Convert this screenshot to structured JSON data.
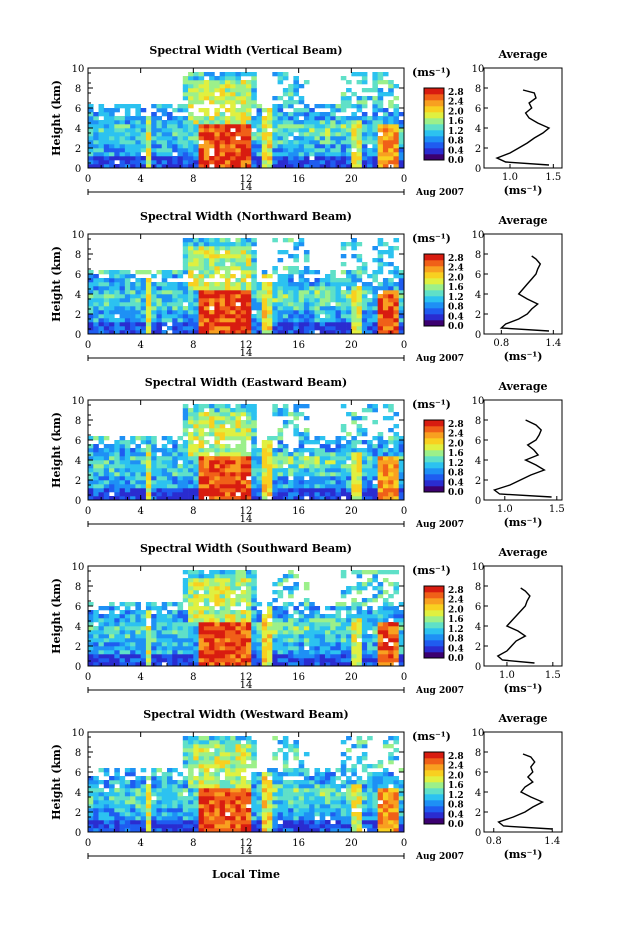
{
  "figure": {
    "xlabel": "Local Time"
  },
  "colorbar": {
    "unit_label": "(ms⁻¹)",
    "ticks": [
      "2.8",
      "2.4",
      "2.0",
      "1.6",
      "1.2",
      "0.8",
      "0.4",
      "0.0"
    ],
    "colors": [
      "#3c0070",
      "#2a2cd0",
      "#1f5cf0",
      "#1e90f5",
      "#2cc2f0",
      "#5fe0c8",
      "#9cf08a",
      "#e0f040",
      "#f8d020",
      "#f8a020",
      "#f06018",
      "#d81c10"
    ]
  },
  "date": {
    "day_label": "14",
    "month_label": "Aug 2007"
  },
  "chart_data": [
    {
      "type": "heatmap",
      "title": "Spectral Width (Vertical Beam)",
      "ylabel": "Height (km)",
      "xticks": [
        "0",
        "4",
        "8",
        "12",
        "16",
        "20",
        "0"
      ],
      "yticks": [
        "0",
        "2",
        "4",
        "6",
        "8",
        "10"
      ],
      "xlim": [
        0,
        24
      ],
      "ylim": [
        0,
        10
      ],
      "average": {
        "title": "Average",
        "xlabel": "(ms⁻¹)",
        "xticks": [
          "1.0",
          "1.5"
        ],
        "yticks": [
          "0",
          "2",
          "4",
          "6",
          "8",
          "10"
        ],
        "xlim": [
          0.7,
          1.6
        ],
        "profile": {
          "height_km": [
            0.3,
            0.6,
            1.0,
            1.5,
            2.0,
            2.5,
            3.0,
            3.5,
            4.0,
            4.5,
            5.0,
            5.5,
            6.0,
            6.5,
            7.0,
            7.5,
            7.8
          ],
          "width_ms": [
            1.45,
            0.95,
            0.85,
            1.0,
            1.1,
            1.2,
            1.28,
            1.38,
            1.45,
            1.32,
            1.22,
            1.18,
            1.25,
            1.22,
            1.3,
            1.28,
            1.15
          ]
        }
      }
    },
    {
      "type": "heatmap",
      "title": "Spectral Width (Northward Beam)",
      "ylabel": "Height (km)",
      "xticks": [
        "0",
        "4",
        "8",
        "12",
        "16",
        "20",
        "0"
      ],
      "yticks": [
        "0",
        "2",
        "4",
        "6",
        "8",
        "10"
      ],
      "xlim": [
        0,
        24
      ],
      "ylim": [
        0,
        10
      ],
      "average": {
        "title": "Average",
        "xlabel": "(ms⁻¹)",
        "xticks": [
          "0.8",
          "1.4"
        ],
        "yticks": [
          "0",
          "2",
          "4",
          "6",
          "8",
          "10"
        ],
        "xlim": [
          0.6,
          1.5
        ],
        "profile": {
          "height_km": [
            0.3,
            0.6,
            1.0,
            1.5,
            2.0,
            2.5,
            3.0,
            3.5,
            4.0,
            4.5,
            5.0,
            5.5,
            6.0,
            6.5,
            7.0,
            7.5,
            7.8
          ],
          "width_ms": [
            1.35,
            0.8,
            0.85,
            1.0,
            1.1,
            1.15,
            1.22,
            1.1,
            1.0,
            1.05,
            1.1,
            1.15,
            1.2,
            1.22,
            1.25,
            1.2,
            1.15
          ]
        }
      }
    },
    {
      "type": "heatmap",
      "title": "Spectral Width (Eastward Beam)",
      "ylabel": "Height (km)",
      "xticks": [
        "0",
        "4",
        "8",
        "12",
        "16",
        "20",
        "0"
      ],
      "yticks": [
        "0",
        "2",
        "4",
        "6",
        "8",
        "10"
      ],
      "xlim": [
        0,
        24
      ],
      "ylim": [
        0,
        10
      ],
      "average": {
        "title": "Average",
        "xlabel": "(ms⁻¹)",
        "xticks": [
          "1.0",
          "1.5"
        ],
        "yticks": [
          "0",
          "2",
          "4",
          "6",
          "8",
          "10"
        ],
        "xlim": [
          0.8,
          1.55
        ],
        "profile": {
          "height_km": [
            0.3,
            0.6,
            1.0,
            1.5,
            2.0,
            2.5,
            3.0,
            3.5,
            4.0,
            4.5,
            5.0,
            5.5,
            6.0,
            6.5,
            7.0,
            7.5,
            8.0
          ],
          "width_ms": [
            1.45,
            0.95,
            0.9,
            1.05,
            1.15,
            1.25,
            1.38,
            1.3,
            1.2,
            1.32,
            1.28,
            1.22,
            1.3,
            1.33,
            1.35,
            1.3,
            1.2
          ]
        }
      }
    },
    {
      "type": "heatmap",
      "title": "Spectral Width (Southward Beam)",
      "ylabel": "Height (km)",
      "xticks": [
        "0",
        "4",
        "8",
        "12",
        "16",
        "20",
        "0"
      ],
      "yticks": [
        "0",
        "2",
        "4",
        "6",
        "8",
        "10"
      ],
      "xlim": [
        0,
        24
      ],
      "ylim": [
        0,
        10
      ],
      "average": {
        "title": "Average",
        "xlabel": "(ms⁻¹)",
        "xticks": [
          "1.0",
          "1.5"
        ],
        "yticks": [
          "0",
          "2",
          "4",
          "6",
          "8",
          "10"
        ],
        "xlim": [
          0.75,
          1.6
        ],
        "profile": {
          "height_km": [
            0.3,
            0.6,
            1.0,
            1.5,
            2.0,
            2.5,
            3.0,
            3.5,
            4.0,
            4.5,
            5.0,
            5.5,
            6.0,
            6.5,
            7.0,
            7.5,
            7.8
          ],
          "width_ms": [
            1.3,
            0.95,
            0.9,
            1.0,
            1.05,
            1.1,
            1.2,
            1.12,
            1.0,
            1.05,
            1.1,
            1.15,
            1.2,
            1.22,
            1.25,
            1.2,
            1.15
          ]
        }
      }
    },
    {
      "type": "heatmap",
      "title": "Spectral Width (Westward Beam)",
      "ylabel": "Height (km)",
      "xticks": [
        "0",
        "4",
        "8",
        "12",
        "16",
        "20",
        "0"
      ],
      "yticks": [
        "0",
        "2",
        "4",
        "6",
        "8",
        "10"
      ],
      "xlim": [
        0,
        24
      ],
      "ylim": [
        0,
        10
      ],
      "average": {
        "title": "Average",
        "xlabel": "(ms⁻¹)",
        "xticks": [
          "0.8",
          "1.4"
        ],
        "yticks": [
          "0",
          "2",
          "4",
          "6",
          "8",
          "10"
        ],
        "xlim": [
          0.7,
          1.5
        ],
        "profile": {
          "height_km": [
            0.3,
            0.6,
            1.0,
            1.5,
            2.0,
            2.5,
            3.0,
            3.5,
            4.0,
            4.5,
            5.0,
            5.5,
            6.0,
            6.5,
            7.0,
            7.5,
            7.8
          ],
          "width_ms": [
            1.4,
            0.9,
            0.85,
            1.0,
            1.12,
            1.2,
            1.3,
            1.18,
            1.08,
            1.12,
            1.2,
            1.15,
            1.2,
            1.18,
            1.22,
            1.18,
            1.1
          ]
        }
      }
    }
  ]
}
